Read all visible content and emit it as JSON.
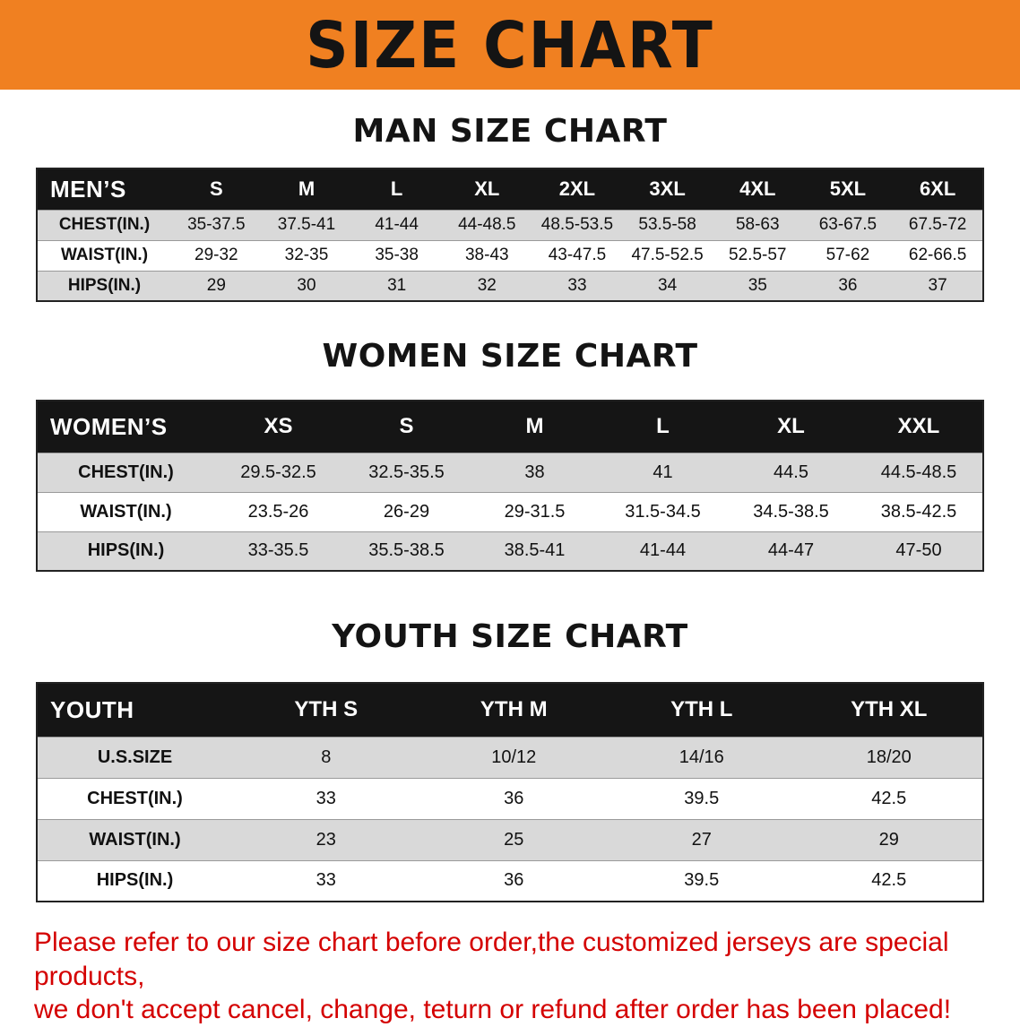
{
  "colors": {
    "banner_bg": "#f08021",
    "table_header_bg": "#151515",
    "row_stripe": "#d9d9d9",
    "footer_text": "#d40000"
  },
  "banner": {
    "title": "SIZE CHART"
  },
  "sections": {
    "men": {
      "heading": "MAN SIZE CHART",
      "table": {
        "corner": "MEN’S",
        "columns": [
          "S",
          "M",
          "L",
          "XL",
          "2XL",
          "3XL",
          "4XL",
          "5XL",
          "6XL"
        ],
        "rows": [
          {
            "label": "CHEST(IN.)",
            "values": [
              "35-37.5",
              "37.5-41",
              "41-44",
              "44-48.5",
              "48.5-53.5",
              "53.5-58",
              "58-63",
              "63-67.5",
              "67.5-72"
            ]
          },
          {
            "label": "WAIST(IN.)",
            "values": [
              "29-32",
              "32-35",
              "35-38",
              "38-43",
              "43-47.5",
              "47.5-52.5",
              "52.5-57",
              "57-62",
              "62-66.5"
            ]
          },
          {
            "label": "HIPS(IN.)",
            "values": [
              "29",
              "30",
              "31",
              "32",
              "33",
              "34",
              "35",
              "36",
              "37"
            ]
          }
        ]
      }
    },
    "women": {
      "heading": "WOMEN SIZE CHART",
      "table": {
        "corner": "WOMEN’S",
        "columns": [
          "XS",
          "S",
          "M",
          "L",
          "XL",
          "XXL"
        ],
        "rows": [
          {
            "label": "CHEST(IN.)",
            "values": [
              "29.5-32.5",
              "32.5-35.5",
              "38",
              "41",
              "44.5",
              "44.5-48.5"
            ]
          },
          {
            "label": "WAIST(IN.)",
            "values": [
              "23.5-26",
              "26-29",
              "29-31.5",
              "31.5-34.5",
              "34.5-38.5",
              "38.5-42.5"
            ]
          },
          {
            "label": "HIPS(IN.)",
            "values": [
              "33-35.5",
              "35.5-38.5",
              "38.5-41",
              "41-44",
              "44-47",
              "47-50"
            ]
          }
        ]
      }
    },
    "youth": {
      "heading": "YOUTH SIZE CHART",
      "table": {
        "corner": "YOUTH",
        "columns": [
          "YTH S",
          "YTH M",
          "YTH L",
          "YTH XL"
        ],
        "rows": [
          {
            "label": "U.S.SIZE",
            "values": [
              "8",
              "10/12",
              "14/16",
              "18/20"
            ]
          },
          {
            "label": "CHEST(IN.)",
            "values": [
              "33",
              "36",
              "39.5",
              "42.5"
            ]
          },
          {
            "label": "WAIST(IN.)",
            "values": [
              "23",
              "25",
              "27",
              "29"
            ]
          },
          {
            "label": "HIPS(IN.)",
            "values": [
              "33",
              "36",
              "39.5",
              "42.5"
            ]
          }
        ]
      }
    }
  },
  "footer": {
    "lines": [
      "Please refer to our size chart before order,the customized jerseys are special products,",
      "we don't accept cancel, change, teturn or refund after order has been placed!"
    ]
  }
}
